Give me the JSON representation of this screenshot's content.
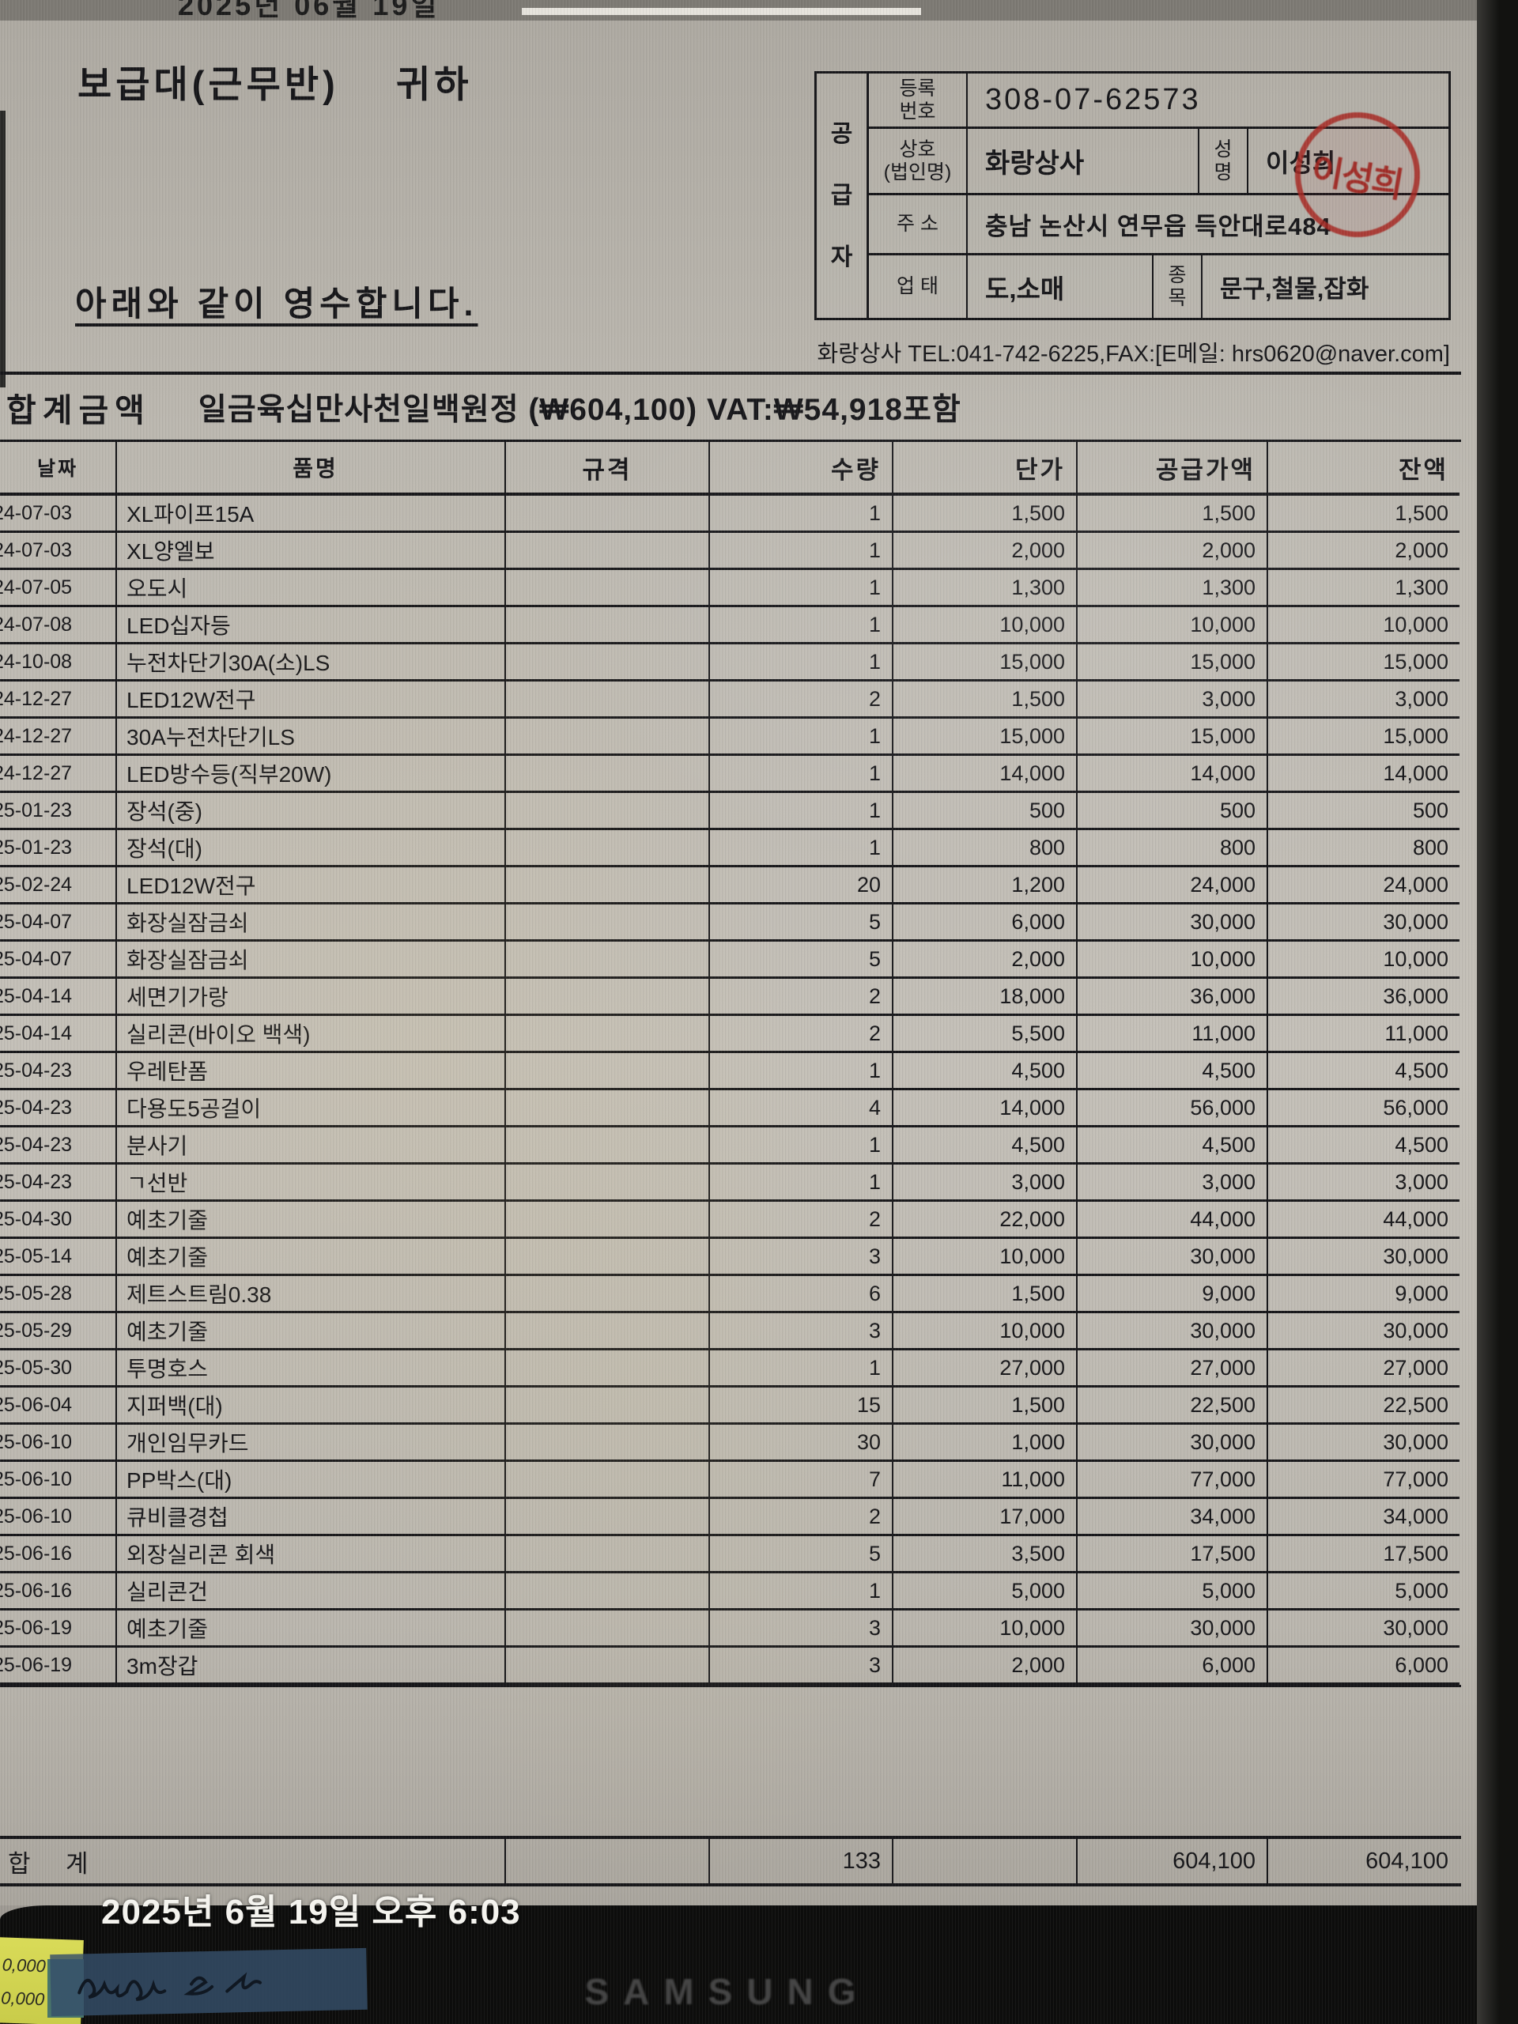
{
  "screen": {
    "top_cut_text": "2025년 06월 19일",
    "timestamp_overlay": "2025년 6월 19일 오후 6:03",
    "brand": "SAMSUNG",
    "sticky_note_lines": [
      "0,000",
      "0,000"
    ]
  },
  "receipt": {
    "recipient": "보급대(근무반)    귀하",
    "statement": "아래와 같이 영수합니다.",
    "contact_line": "화랑상사 TEL:041-742-6225,FAX:[E메일: hrs0620@naver.com]",
    "supplier": {
      "side_label": "공\n급\n자",
      "reg_label": "등록\n번호",
      "reg_no": "308-07-62573",
      "trade_label": "상호\n(법인명)",
      "trade_name": "화랑상사",
      "name_label": "성\n명",
      "name": "이성희",
      "stamp_text": "이성희",
      "address_label": "주 소",
      "address": "충남 논산시 연무읍 득안대로484",
      "biz_type_label": "업 태",
      "biz_type": "도,소매",
      "category_label": "종\n목",
      "category": "문구,철물,잡화"
    },
    "total_label": "합계금액",
    "total_text": "일금육십만사천일백원정 (₩604,100) VAT:₩54,918포함"
  },
  "table": {
    "columns": [
      "날짜",
      "품명",
      "규격",
      "수량",
      "단가",
      "공급가액",
      "잔액"
    ],
    "rows": [
      [
        "24-07-03",
        "XL파이프15A",
        "",
        "1",
        "1,500",
        "1,500",
        "1,500"
      ],
      [
        "24-07-03",
        "XL양엘보",
        "",
        "1",
        "2,000",
        "2,000",
        "2,000"
      ],
      [
        "24-07-05",
        "오도시",
        "",
        "1",
        "1,300",
        "1,300",
        "1,300"
      ],
      [
        "24-07-08",
        "LED십자등",
        "",
        "1",
        "10,000",
        "10,000",
        "10,000"
      ],
      [
        "24-10-08",
        "누전차단기30A(소)LS",
        "",
        "1",
        "15,000",
        "15,000",
        "15,000"
      ],
      [
        "24-12-27",
        "LED12W전구",
        "",
        "2",
        "1,500",
        "3,000",
        "3,000"
      ],
      [
        "24-12-27",
        "30A누전차단기LS",
        "",
        "1",
        "15,000",
        "15,000",
        "15,000"
      ],
      [
        "24-12-27",
        "LED방수등(직부20W)",
        "",
        "1",
        "14,000",
        "14,000",
        "14,000"
      ],
      [
        "25-01-23",
        "장석(중)",
        "",
        "1",
        "500",
        "500",
        "500"
      ],
      [
        "25-01-23",
        "장석(대)",
        "",
        "1",
        "800",
        "800",
        "800"
      ],
      [
        "25-02-24",
        "LED12W전구",
        "",
        "20",
        "1,200",
        "24,000",
        "24,000"
      ],
      [
        "25-04-07",
        "화장실잠금쇠",
        "",
        "5",
        "6,000",
        "30,000",
        "30,000"
      ],
      [
        "25-04-07",
        "화장실잠금쇠",
        "",
        "5",
        "2,000",
        "10,000",
        "10,000"
      ],
      [
        "25-04-14",
        "세면기가랑",
        "",
        "2",
        "18,000",
        "36,000",
        "36,000"
      ],
      [
        "25-04-14",
        "실리콘(바이오 백색)",
        "",
        "2",
        "5,500",
        "11,000",
        "11,000"
      ],
      [
        "25-04-23",
        "우레탄폼",
        "",
        "1",
        "4,500",
        "4,500",
        "4,500"
      ],
      [
        "25-04-23",
        "다용도5공걸이",
        "",
        "4",
        "14,000",
        "56,000",
        "56,000"
      ],
      [
        "25-04-23",
        "분사기",
        "",
        "1",
        "4,500",
        "4,500",
        "4,500"
      ],
      [
        "25-04-23",
        "ㄱ선반",
        "",
        "1",
        "3,000",
        "3,000",
        "3,000"
      ],
      [
        "25-04-30",
        "예초기줄",
        "",
        "2",
        "22,000",
        "44,000",
        "44,000"
      ],
      [
        "25-05-14",
        "예초기줄",
        "",
        "3",
        "10,000",
        "30,000",
        "30,000"
      ],
      [
        "25-05-28",
        "제트스트림0.38",
        "",
        "6",
        "1,500",
        "9,000",
        "9,000"
      ],
      [
        "25-05-29",
        "예초기줄",
        "",
        "3",
        "10,000",
        "30,000",
        "30,000"
      ],
      [
        "25-05-30",
        "투명호스",
        "",
        "1",
        "27,000",
        "27,000",
        "27,000"
      ],
      [
        "25-06-04",
        "지퍼백(대)",
        "",
        "15",
        "1,500",
        "22,500",
        "22,500"
      ],
      [
        "25-06-10",
        "개인임무카드",
        "",
        "30",
        "1,000",
        "30,000",
        "30,000"
      ],
      [
        "25-06-10",
        "PP박스(대)",
        "",
        "7",
        "11,000",
        "77,000",
        "77,000"
      ],
      [
        "25-06-10",
        "큐비클경첩",
        "",
        "2",
        "17,000",
        "34,000",
        "34,000"
      ],
      [
        "25-06-16",
        "외장실리콘 회색",
        "",
        "5",
        "3,500",
        "17,500",
        "17,500"
      ],
      [
        "25-06-16",
        "실리콘건",
        "",
        "1",
        "5,000",
        "5,000",
        "5,000"
      ],
      [
        "25-06-19",
        "예초기줄",
        "",
        "3",
        "10,000",
        "30,000",
        "30,000"
      ],
      [
        "25-06-19",
        "3m장갑",
        "",
        "3",
        "2,000",
        "6,000",
        "6,000"
      ]
    ],
    "total_row": {
      "label": "합    계",
      "qty": "133",
      "supply": "604,100",
      "balance": "604,100"
    }
  },
  "colors": {
    "stamp_red": "#a82a24",
    "paper": "#bcb8b0",
    "ink": "#17171a",
    "bezel": "#0d0d0c",
    "sticky_yellow": "#d9db58",
    "tape_blue": "#364f6a",
    "timestamp_white": "#f4f3ee"
  }
}
